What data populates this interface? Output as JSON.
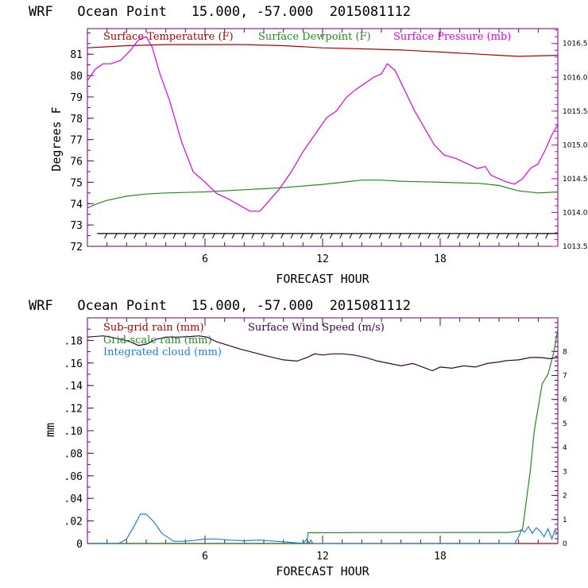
{
  "colors": {
    "temperature": "#b00000",
    "dewpoint": "#228b22",
    "pressure": "#e000e0",
    "subgrid_rain": "#b00000",
    "gridscale_rain": "#228b22",
    "cloud": "#1e7fd6",
    "wind": "#3a0040",
    "axis": "#6a006a"
  },
  "chart_data": [
    {
      "type": "line",
      "title": "WRF   Ocean Point   15.000, -57.000  2015081112",
      "xlabel": "FORECAST HOUR",
      "ylabel": "Degrees F",
      "xlim": [
        0,
        24
      ],
      "ylim": [
        72,
        82.2
      ],
      "x_ticks": [
        6,
        12,
        18
      ],
      "y_ticks": [
        72,
        73,
        74,
        75,
        76,
        77,
        78,
        79,
        80,
        81
      ],
      "y2lim": [
        1013.5,
        1016.72
      ],
      "y2_ticks": [
        "1013.5",
        "1014.0",
        "1014.5",
        "1015.0",
        "1015.5",
        "1016.0",
        "1016.5"
      ],
      "legend": [
        "Surface Temperature (F)",
        "Surface Dewpoint (F)",
        "Surface Pressure (mb)"
      ],
      "series": [
        {
          "name": "Surface Temperature (F)",
          "axis": "left",
          "x": [
            0,
            2,
            4,
            6,
            8,
            10,
            12,
            14,
            16,
            18,
            20,
            21,
            22,
            24
          ],
          "values": [
            81.3,
            81.4,
            81.45,
            81.45,
            81.45,
            81.4,
            81.3,
            81.25,
            81.2,
            81.1,
            81.0,
            80.95,
            80.9,
            80.95
          ]
        },
        {
          "name": "Surface Dewpoint (F)",
          "axis": "left",
          "x": [
            0,
            0.5,
            1,
            2,
            3,
            4,
            6,
            8,
            10,
            12,
            13,
            14,
            15,
            16,
            18,
            20,
            21,
            22,
            23,
            24
          ],
          "values": [
            73.8,
            74.0,
            74.15,
            74.35,
            74.45,
            74.5,
            74.55,
            74.65,
            74.75,
            74.9,
            75.0,
            75.1,
            75.1,
            75.05,
            75.0,
            74.95,
            74.85,
            74.6,
            74.5,
            74.55
          ]
        },
        {
          "name": "Surface Pressure (mb)",
          "axis": "right",
          "x": [
            0,
            0.4,
            0.8,
            1.2,
            1.7,
            2.2,
            2.6,
            3.0,
            3.3,
            3.7,
            4.2,
            4.8,
            5.4,
            6.0,
            6.6,
            7.2,
            7.8,
            8.3,
            8.8,
            9.2,
            9.8,
            10.4,
            11.0,
            11.6,
            12.2,
            12.7,
            13.2,
            13.7,
            14.2,
            14.6,
            15.0,
            15.3,
            15.7,
            16.2,
            16.7,
            17.2,
            17.7,
            18.2,
            18.8,
            19.4,
            19.9,
            20.3,
            20.6,
            21.0,
            21.4,
            21.8,
            22.2,
            22.6,
            23.0,
            23.4,
            23.7,
            24.0
          ],
          "values": [
            1015.95,
            1016.12,
            1016.2,
            1016.2,
            1016.25,
            1016.4,
            1016.55,
            1016.6,
            1016.45,
            1016.05,
            1015.65,
            1015.05,
            1014.6,
            1014.45,
            1014.28,
            1014.2,
            1014.1,
            1014.02,
            1014.02,
            1014.15,
            1014.35,
            1014.6,
            1014.9,
            1015.15,
            1015.4,
            1015.5,
            1015.7,
            1015.82,
            1015.92,
            1016.0,
            1016.05,
            1016.2,
            1016.1,
            1015.8,
            1015.5,
            1015.25,
            1015.0,
            1014.85,
            1014.8,
            1014.72,
            1014.65,
            1014.68,
            1014.55,
            1014.5,
            1014.45,
            1014.42,
            1014.5,
            1014.65,
            1014.72,
            1014.95,
            1015.15,
            1015.3
          ]
        }
      ]
    },
    {
      "type": "line",
      "title": "WRF   Ocean Point   15.000, -57.000  2015081112",
      "xlabel": "FORECAST HOUR",
      "ylabel": "mm",
      "xlim": [
        0,
        24
      ],
      "ylim": [
        0,
        0.2
      ],
      "x_ticks": [
        6,
        12,
        18
      ],
      "y_ticks": [
        "0",
        ".02",
        ".04",
        ".06",
        ".08",
        ".10",
        ".12",
        ".14",
        ".16",
        ".18"
      ],
      "y2lim": [
        0,
        9.4
      ],
      "y2_ticks": [
        "0",
        "1",
        "2",
        "3",
        "4",
        "5",
        "6",
        "7",
        "8"
      ],
      "legend": [
        "Sub-grid rain (mm)",
        "Grid-scale rain (mm)",
        "Integrated cloud (mm)",
        "Surface Wind Speed (m/s)"
      ],
      "series": [
        {
          "name": "Sub-grid rain (mm)",
          "axis": "left",
          "x": [
            0,
            24
          ],
          "values": [
            0,
            0
          ]
        },
        {
          "name": "Grid-scale rain (mm)",
          "axis": "left",
          "x": [
            0,
            11.2,
            11.25,
            15,
            21.5,
            22.0,
            22.2,
            22.6,
            22.8,
            23.2,
            23.5,
            23.8,
            24.0
          ],
          "values": [
            0,
            0,
            0.0095,
            0.0097,
            0.0098,
            0.011,
            0.0125,
            0.065,
            0.1,
            0.1415,
            0.15,
            0.17,
            0.19
          ]
        },
        {
          "name": "Integrated cloud (mm)",
          "axis": "left",
          "x": [
            0,
            1.6,
            2.0,
            2.4,
            2.7,
            3.0,
            3.4,
            3.8,
            4.4,
            5.0,
            5.6,
            6.0,
            6.6,
            7.2,
            8.0,
            8.8,
            9.6,
            10.4,
            11.0,
            11.2,
            11.3,
            11.4,
            11.5,
            11.6,
            12,
            21.8,
            22.0,
            22.15,
            22.3,
            22.5,
            22.7,
            22.9,
            23.1,
            23.3,
            23.5,
            23.7,
            23.85,
            24.0
          ],
          "values": [
            0,
            0,
            0.004,
            0.016,
            0.026,
            0.026,
            0.019,
            0.009,
            0.002,
            0.002,
            0.003,
            0.004,
            0.004,
            0.003,
            0.0025,
            0.003,
            0.002,
            0.001,
            0,
            0.004,
            0,
            0.003,
            0,
            0,
            0,
            0,
            0.006,
            0.012,
            0.01,
            0.015,
            0.009,
            0.014,
            0.011,
            0.006,
            0.013,
            0.004,
            0.012,
            0.008
          ]
        },
        {
          "name": "Surface Wind Speed (m/s)",
          "axis": "right",
          "x": [
            0,
            0.8,
            1.5,
            2.2,
            2.6,
            3.0,
            3.5,
            4.0,
            4.7,
            5.2,
            5.7,
            6.1,
            6.6,
            7.2,
            7.8,
            8.5,
            9.2,
            10.0,
            10.7,
            11.2,
            11.6,
            12.0,
            12.5,
            13.0,
            13.6,
            14.2,
            14.8,
            15.4,
            16.0,
            16.6,
            17.1,
            17.6,
            18.0,
            18.6,
            19.2,
            19.8,
            20.4,
            20.9,
            21.4,
            22.0,
            22.6,
            23.1,
            23.6,
            24.0
          ],
          "values": [
            8.6,
            8.65,
            8.55,
            8.4,
            8.25,
            8.3,
            8.5,
            8.6,
            8.6,
            8.62,
            8.65,
            8.6,
            8.4,
            8.25,
            8.1,
            7.95,
            7.8,
            7.65,
            7.6,
            7.75,
            7.9,
            7.85,
            7.9,
            7.9,
            7.85,
            7.75,
            7.6,
            7.5,
            7.4,
            7.5,
            7.35,
            7.2,
            7.35,
            7.3,
            7.4,
            7.35,
            7.5,
            7.55,
            7.62,
            7.65,
            7.75,
            7.75,
            7.7,
            7.75
          ]
        }
      ]
    }
  ]
}
